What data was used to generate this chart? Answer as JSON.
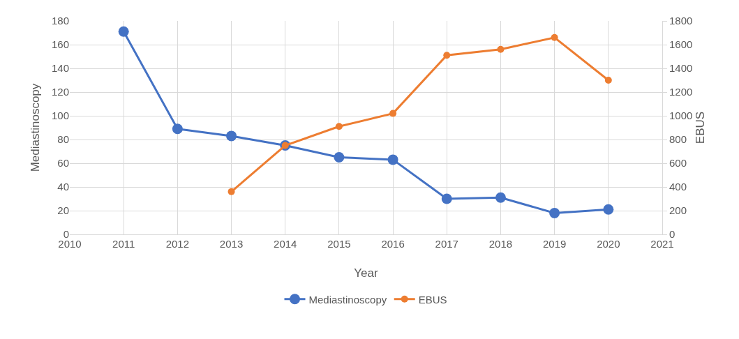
{
  "chart_data": {
    "type": "line",
    "xlabel": "Year",
    "ylabel": "Mediastinoscopy",
    "y2label": "EBUS",
    "series": [
      {
        "name": "Mediastinoscopy",
        "color": "#4472c4",
        "x": [
          2011,
          2012,
          2013,
          2014,
          2015,
          2016,
          2017,
          2018,
          2019,
          2020
        ],
        "values": [
          171,
          89,
          83,
          75,
          65,
          63,
          30,
          31,
          18,
          21
        ]
      },
      {
        "name": "EBUS",
        "color": "#ed7d31",
        "axis": "y2",
        "x": [
          2013,
          2014,
          2015,
          2016,
          2017,
          2018,
          2019,
          2020
        ],
        "values": [
          360,
          750,
          910,
          1020,
          1510,
          1560,
          1660,
          1300
        ]
      }
    ],
    "xlim": [
      2010,
      2021
    ],
    "xticks": [
      2010,
      2011,
      2012,
      2013,
      2014,
      2015,
      2016,
      2017,
      2018,
      2019,
      2020,
      2021
    ],
    "ylim": [
      0,
      180
    ],
    "yticks": [
      0,
      20,
      40,
      60,
      80,
      100,
      120,
      140,
      160,
      180
    ],
    "y2lim": [
      0,
      1800
    ],
    "y2ticks": [
      0,
      200,
      400,
      600,
      800,
      1000,
      1200,
      1400,
      1600,
      1800
    ],
    "grid": true,
    "legend": "bottom",
    "marker": "circle",
    "line_style": "solid"
  }
}
